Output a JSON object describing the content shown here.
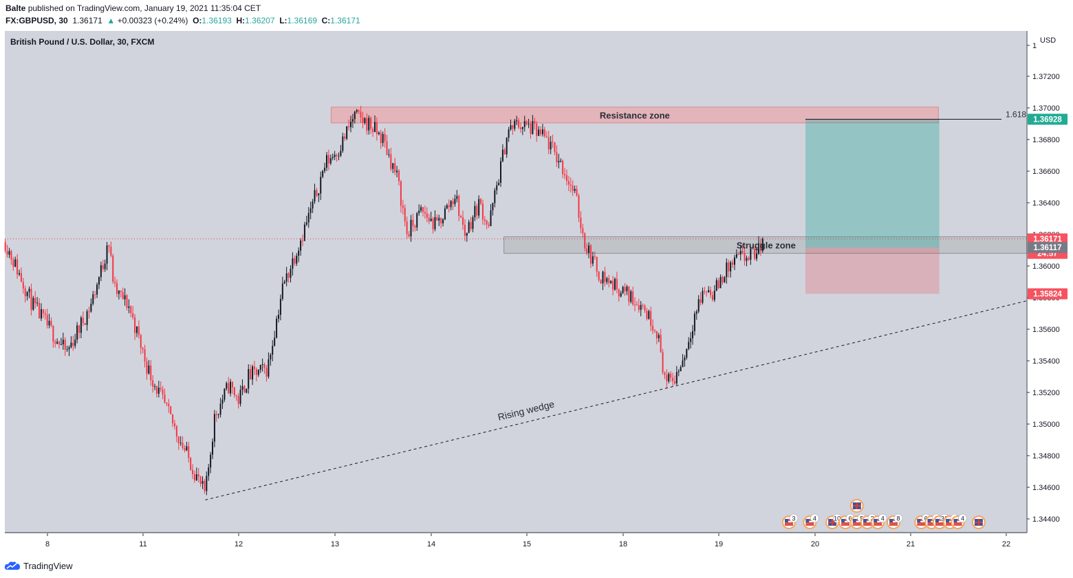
{
  "header": {
    "publisher": "Balte",
    "published_text": "published on TradingView.com, January 19, 2021 11:35:04 CET",
    "symbol": "FX:GBPUSD, 30",
    "last": "1.36171",
    "change_arrow": "▲",
    "change": "+0.00323 (+0.24%)",
    "o_label": "O:",
    "o_value": "1.36193",
    "h_label": "H:",
    "h_value": "1.36207",
    "l_label": "L:",
    "l_value": "1.36169",
    "c_label": "C:",
    "c_value": "1.36171"
  },
  "chart_title": "British Pound / U.S. Dollar, 30, FXCM",
  "footer": {
    "brand": "TradingView"
  },
  "chart_data": {
    "type": "candlestick",
    "title": "British Pound / U.S. Dollar, 30, FXCM",
    "currency": "USD",
    "y_axis_top_label": "1",
    "ylim": [
      1.3434,
      1.3718
    ],
    "y_ticks": [
      1.372,
      1.37,
      1.368,
      1.366,
      1.364,
      1.362,
      1.36,
      1.358,
      1.356,
      1.354,
      1.352,
      1.35,
      1.348,
      1.346,
      1.344
    ],
    "y_tick_labels": [
      "1.37200",
      "1.37000",
      "1.36800",
      "1.36600",
      "1.36400",
      "1.36200",
      "1.36000",
      "1.35800",
      "1.35600",
      "1.35400",
      "1.35200",
      "1.35000",
      "1.34800",
      "1.34600",
      "1.34400"
    ],
    "x_ticks": [
      {
        "label": "8",
        "day": 0
      },
      {
        "label": "11",
        "day": 1
      },
      {
        "label": "12",
        "day": 2
      },
      {
        "label": "13",
        "day": 3
      },
      {
        "label": "14",
        "day": 4
      },
      {
        "label": "15",
        "day": 5
      },
      {
        "label": "18",
        "day": 6
      },
      {
        "label": "19",
        "day": 7
      },
      {
        "label": "20",
        "day": 8
      },
      {
        "label": "21",
        "day": 9
      },
      {
        "label": "22",
        "day": 10
      }
    ],
    "x_range_days": [
      -0.44,
      10.15
    ],
    "price_path": [
      [
        -0.44,
        1.3615
      ],
      [
        -0.15,
        1.3575
      ],
      [
        0.2,
        1.3545
      ],
      [
        0.45,
        1.3575
      ],
      [
        0.6,
        1.3605
      ],
      [
        0.63,
        1.362
      ],
      [
        0.7,
        1.3585
      ],
      [
        0.85,
        1.3575
      ],
      [
        1.05,
        1.3535
      ],
      [
        1.35,
        1.3495
      ],
      [
        1.65,
        1.3455
      ],
      [
        1.75,
        1.3505
      ],
      [
        1.9,
        1.3525
      ],
      [
        2.0,
        1.3515
      ],
      [
        2.1,
        1.353
      ],
      [
        2.3,
        1.3535
      ],
      [
        2.45,
        1.3585
      ],
      [
        2.6,
        1.361
      ],
      [
        2.75,
        1.3635
      ],
      [
        2.9,
        1.3665
      ],
      [
        3.05,
        1.3675
      ],
      [
        3.2,
        1.3695
      ],
      [
        3.35,
        1.369
      ],
      [
        3.5,
        1.368
      ],
      [
        3.65,
        1.3655
      ],
      [
        3.75,
        1.362
      ],
      [
        3.9,
        1.3635
      ],
      [
        4.05,
        1.3625
      ],
      [
        4.25,
        1.3645
      ],
      [
        4.35,
        1.362
      ],
      [
        4.5,
        1.364
      ],
      [
        4.6,
        1.3625
      ],
      [
        4.7,
        1.3655
      ],
      [
        4.8,
        1.3685
      ],
      [
        4.9,
        1.369
      ],
      [
        5.05,
        1.3687
      ],
      [
        5.2,
        1.368
      ],
      [
        5.35,
        1.3665
      ],
      [
        5.5,
        1.3645
      ],
      [
        5.6,
        1.3615
      ],
      [
        5.75,
        1.3595
      ],
      [
        5.9,
        1.3588
      ],
      [
        6.05,
        1.3582
      ],
      [
        6.2,
        1.3575
      ],
      [
        6.35,
        1.356
      ],
      [
        6.45,
        1.3525
      ],
      [
        6.55,
        1.353
      ],
      [
        6.65,
        1.3545
      ],
      [
        6.75,
        1.357
      ],
      [
        6.85,
        1.3585
      ],
      [
        6.95,
        1.3583
      ],
      [
        7.05,
        1.3595
      ],
      [
        7.2,
        1.3605
      ],
      [
        7.3,
        1.3605
      ],
      [
        7.42,
        1.361
      ],
      [
        7.47,
        1.36171
      ]
    ],
    "last_price": 1.36171,
    "annotations": [
      {
        "type": "zone",
        "label": "Resistance zone",
        "x_start_day": 2.96,
        "x_end_day": 9.29,
        "y_top": 1.37005,
        "y_bottom": 1.36905,
        "color": "#e8a9ad"
      },
      {
        "type": "zone",
        "label": "Struggle zone",
        "x_start_day": 4.76,
        "x_end_day": 10.23,
        "y_top": 1.36185,
        "y_bottom": 1.3608,
        "color": "#bdbfc4"
      },
      {
        "type": "trendline",
        "label": "Rising wedge",
        "style": "dashed",
        "from": [
          1.65,
          1.3452
        ],
        "to": [
          10.42,
          1.3581
        ]
      },
      {
        "type": "level",
        "label": "1.618",
        "x_start_day": 7.9,
        "x_end_day": 9.95,
        "y": 1.36928
      },
      {
        "type": "long_position",
        "x_start_day": 7.9,
        "x_end_day": 9.3,
        "entry": 1.36117,
        "target": 1.36928,
        "stop": 1.35824
      }
    ],
    "price_labels": [
      {
        "text": "1.36928",
        "value": 1.36928,
        "color": "#22ab94"
      },
      {
        "text": "1.36171",
        "value": 1.36171,
        "color": "#f7525f"
      },
      {
        "text": "24:57",
        "value": 1.3608,
        "color": "#f7525f"
      },
      {
        "text": "1.36117",
        "value": 1.36117,
        "color": "#787b86"
      },
      {
        "text": "1.35824",
        "value": 1.35824,
        "color": "#f7525f"
      }
    ],
    "events": [
      {
        "day": 8.32,
        "flag": "us",
        "count": "3"
      },
      {
        "day": 8.72,
        "flag": "us",
        "count": "4"
      },
      {
        "day": 9.15,
        "flag": "uk",
        "count": "10"
      },
      {
        "day": 9.4,
        "flag": "us",
        "count": "6"
      },
      {
        "day": 9.62,
        "flag": "uk",
        "count": ""
      },
      {
        "day": 9.62,
        "flag": "us",
        "count": "5"
      },
      {
        "day": 9.82,
        "flag": "us",
        "count": "2"
      },
      {
        "day": 10.02,
        "flag": "us",
        "count": "4"
      },
      {
        "day": 10.32,
        "flag": "us",
        "count": "8"
      },
      {
        "day": 10.85,
        "flag": "us",
        "count": "6"
      },
      {
        "day": 11.05,
        "flag": "us",
        "count": "2"
      },
      {
        "day": 11.2,
        "flag": "us",
        "count": "31"
      },
      {
        "day": 11.4,
        "flag": "us",
        "count": "4"
      },
      {
        "day": 11.55,
        "flag": "us",
        "count": "4"
      },
      {
        "day": 11.95,
        "flag": "uk",
        "count": ""
      }
    ],
    "colors": {
      "up": "#131722",
      "down": "#f23645",
      "background": "#d1d4dc",
      "grid": false
    }
  }
}
